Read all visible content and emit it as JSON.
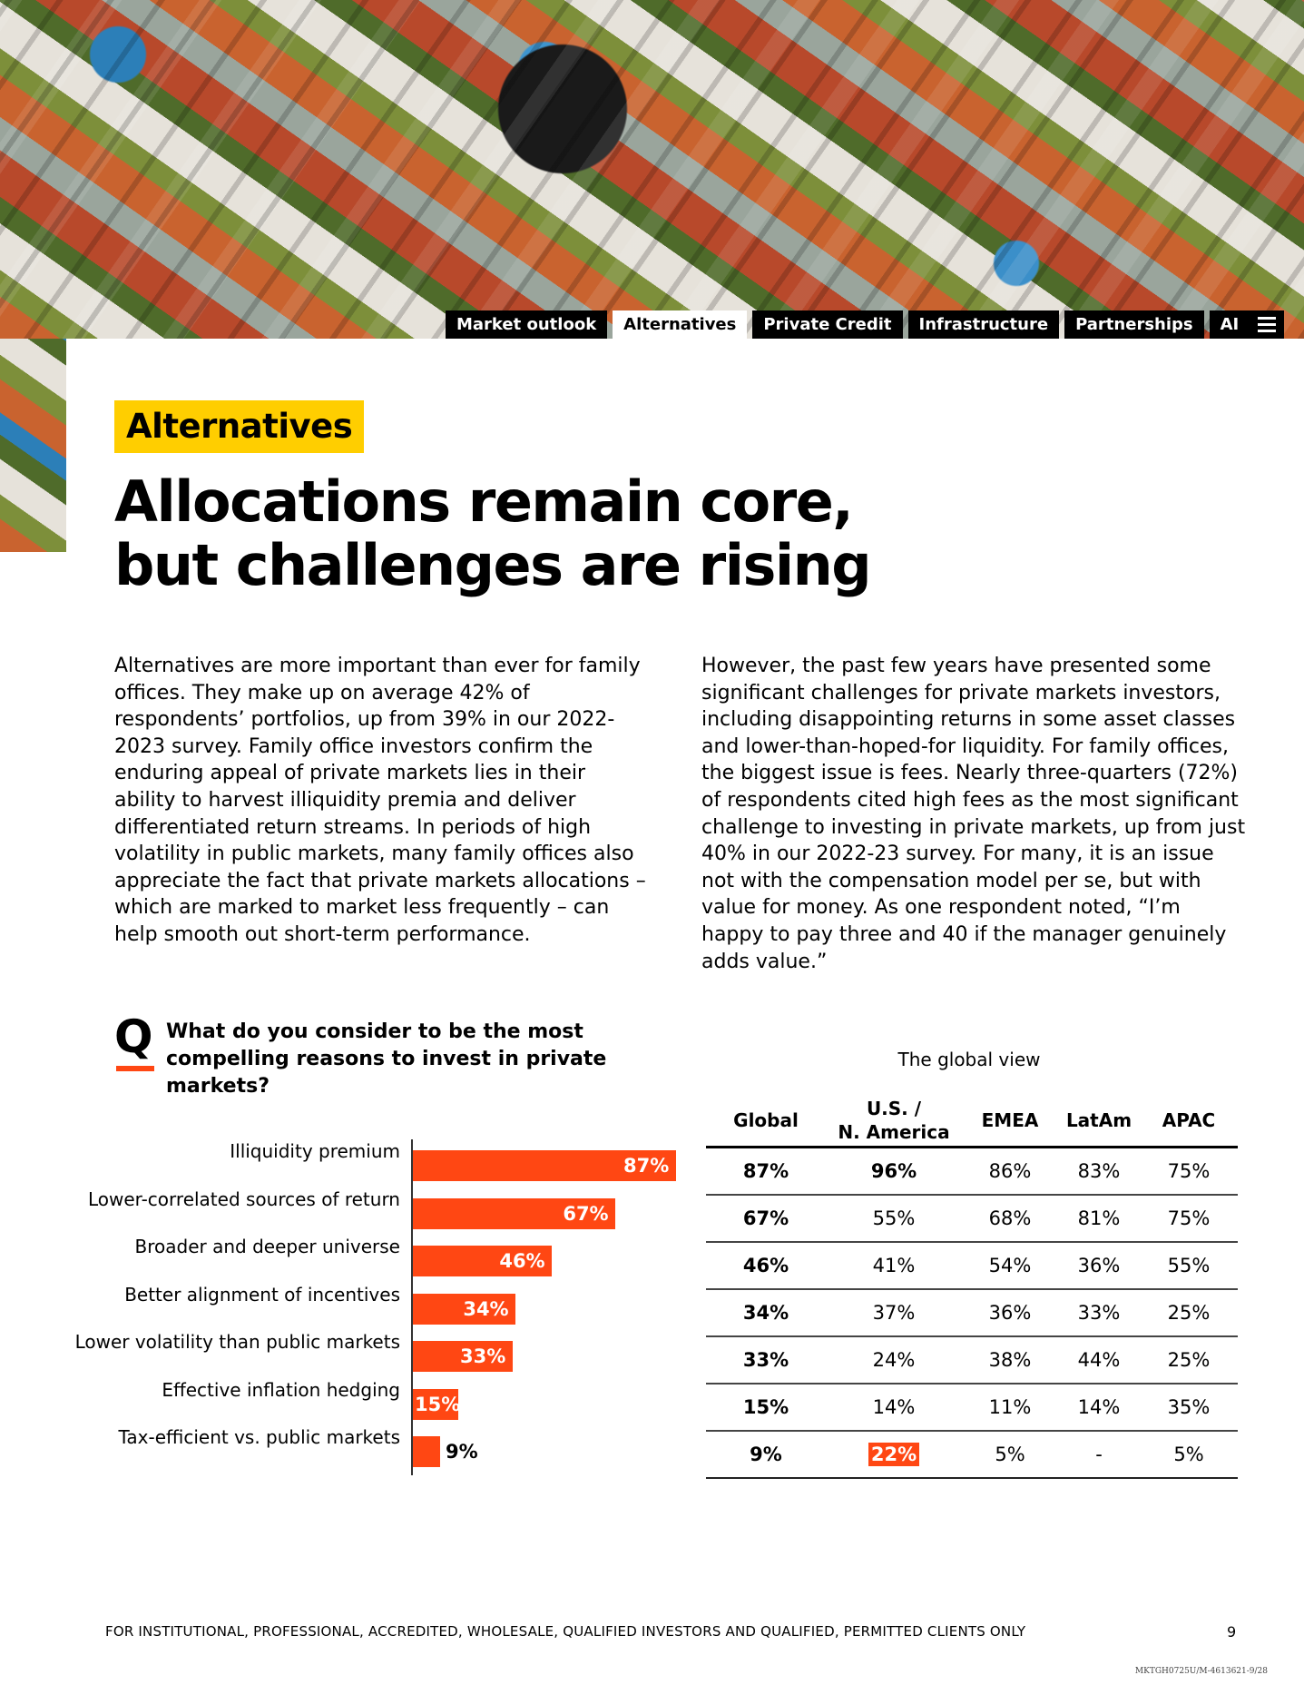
{
  "nav": {
    "tabs": [
      "Market outlook",
      "Alternatives",
      "Private Credit",
      "Infrastructure",
      "Partnerships",
      "AI"
    ],
    "active": "Alternatives"
  },
  "section_tag": "Alternatives",
  "title_line1": "Allocations remain core,",
  "title_line2": "but challenges are rising",
  "body_left": "Alternatives are more important than ever for family offices. They make up on average 42% of respondents’ portfolios, up from 39% in our 2022-2023 survey. Family office investors confirm the enduring appeal of private markets lies in their ability to harvest illiquidity premia and deliver differentiated return streams. In periods of high volatility in public markets, many family offices also appreciate the fact that private markets allocations – which are marked to market less frequently – can help smooth out short-term performance.",
  "body_right": "However, the past few years have presented some significant challenges for private markets investors, including disappointing returns in some asset classes and lower-than-hoped-for liquidity. For family offices, the biggest issue is fees. Nearly three-quarters (72%) of respondents cited high fees as the most significant challenge to investing in private markets, up from just 40% in our 2022-23 survey. For many, it is an issue not with the compensation model per se, but with value for money. As one respondent noted, “I’m happy to pay three and 40 if the manager genuinely adds value.”",
  "question": {
    "letter": "Q",
    "text": "What do you consider to be the most compelling reasons to invest in private markets?"
  },
  "chart_data": {
    "type": "bar",
    "orientation": "horizontal",
    "title": "What do you consider to be the most compelling reasons to invest in private markets?",
    "categories": [
      "Illiquidity premium",
      "Lower-correlated sources of return",
      "Broader and deeper universe",
      "Better alignment of incentives",
      "Lower volatility than public markets",
      "Effective inflation hedging",
      "Tax-efficient vs. public markets"
    ],
    "values": [
      87,
      67,
      46,
      34,
      33,
      15,
      9
    ],
    "value_labels": [
      "87%",
      "67%",
      "46%",
      "34%",
      "33%",
      "15%",
      "9%"
    ],
    "unit": "%",
    "xlim": [
      0,
      100
    ],
    "bar_color": "#ff4713"
  },
  "table": {
    "caption": "The global view",
    "headers": [
      "Global",
      "U.S. /\nN. America",
      "EMEA",
      "LatAm",
      "APAC"
    ],
    "rows": [
      [
        "87%",
        "96%",
        "86%",
        "83%",
        "75%"
      ],
      [
        "67%",
        "55%",
        "68%",
        "81%",
        "75%"
      ],
      [
        "46%",
        "41%",
        "54%",
        "36%",
        "55%"
      ],
      [
        "34%",
        "37%",
        "36%",
        "33%",
        "25%"
      ],
      [
        "33%",
        "24%",
        "38%",
        "44%",
        "25%"
      ],
      [
        "15%",
        "14%",
        "11%",
        "14%",
        "35%"
      ],
      [
        "9%",
        "22%",
        "5%",
        "-",
        "5%"
      ]
    ]
  },
  "footer": {
    "disclaimer": "FOR INSTITUTIONAL, PROFESSIONAL, ACCREDITED, WHOLESALE, QUALIFIED INVESTORS AND QUALIFIED, PERMITTED CLIENTS ONLY",
    "page_number": "9",
    "code": "MKTGH0725U/M-4613621-9/28"
  },
  "colors": {
    "accent": "#ff4713",
    "tag_yellow": "#ffce00",
    "nav_bg": "#000000"
  }
}
